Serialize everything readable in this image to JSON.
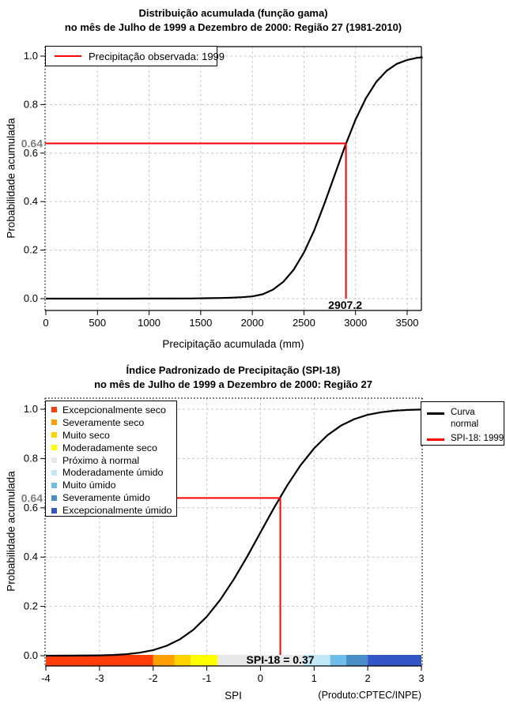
{
  "page": {
    "background": "#ffffff"
  },
  "colors": {
    "curve": "#000000",
    "highlight": "#ff0000",
    "grid": "#c8c8c8",
    "value_label_gray": "#7f7f7f"
  },
  "chart_data": [
    {
      "type": "line",
      "title_line1": "Distribuição acumulada (função gama)",
      "title_line2": "no mês de Julho de 1999 a Dezembro de 2000: Região 27 (1981-2010)",
      "xlabel": "Precipitação acumulada (mm)",
      "ylabel": "Probabilidade acumulada",
      "xlim": [
        0,
        3650
      ],
      "ylim": [
        0,
        1
      ],
      "grid": true,
      "x_ticks": [
        0,
        500,
        1000,
        1500,
        2000,
        2500,
        3000,
        3500
      ],
      "x_tick_labels": [
        "0",
        "500",
        "1000",
        "1500",
        "2000",
        "2500",
        "3000",
        "3500"
      ],
      "y_ticks": [
        0,
        0.2,
        0.4,
        0.6,
        0.8,
        1.0
      ],
      "y_tick_labels": [
        "0.0",
        "0.2",
        "0.4",
        "0.6",
        "0.8",
        "1.0"
      ],
      "series": [
        {
          "name": "Distribuição gama acumulada",
          "color": "#000000",
          "x": [
            0,
            200,
            400,
            600,
            800,
            1000,
            1200,
            1400,
            1600,
            1700,
            1800,
            1900,
            2000,
            2100,
            2200,
            2300,
            2400,
            2500,
            2600,
            2700,
            2800,
            2900,
            3000,
            3100,
            3200,
            3300,
            3400,
            3500,
            3600,
            3650
          ],
          "y": [
            0,
            0,
            0,
            0,
            0.0001,
            0.0002,
            0.0004,
            0.0008,
            0.0018,
            0.0027,
            0.004,
            0.006,
            0.009,
            0.018,
            0.037,
            0.069,
            0.119,
            0.19,
            0.282,
            0.393,
            0.512,
            0.631,
            0.738,
            0.826,
            0.893,
            0.939,
            0.968,
            0.984,
            0.993,
            0.995
          ]
        }
      ],
      "legend": [
        {
          "label": "Precipitação observada: 1999",
          "color": "#ff0000"
        }
      ],
      "annotation": {
        "x": 2907.2,
        "y": 0.64,
        "x_label": "2907.2",
        "y_label": "0.64"
      }
    },
    {
      "type": "line",
      "title_line1": "Índice Padronizado de Precipitação (SPI-18)",
      "title_line2": "no mês de Julho de 1999 a Dezembro de 2000: Região 27",
      "xlabel": "SPI",
      "ylabel": "Probabilidade acumulada",
      "xlim": [
        -4,
        3
      ],
      "ylim": [
        0,
        1
      ],
      "grid": true,
      "x_ticks": [
        -4,
        -3,
        -2,
        -1,
        0,
        1,
        2,
        3
      ],
      "x_tick_labels": [
        "-4",
        "-3",
        "-2",
        "-1",
        "0",
        "1",
        "2",
        "3"
      ],
      "y_ticks": [
        0,
        0.2,
        0.4,
        0.6,
        0.8,
        1.0
      ],
      "y_tick_labels": [
        "0.0",
        "0.2",
        "0.4",
        "0.6",
        "0.8",
        "1.0"
      ],
      "series": [
        {
          "name": "Curva normal",
          "color": "#000000",
          "x": [
            -4,
            -3.5,
            -3,
            -2.75,
            -2.5,
            -2.25,
            -2,
            -1.75,
            -1.5,
            -1.25,
            -1,
            -0.75,
            -0.5,
            -0.25,
            0,
            0.25,
            0.5,
            0.75,
            1,
            1.25,
            1.5,
            1.75,
            2,
            2.25,
            2.5,
            2.75,
            3
          ],
          "y": [
            0.0,
            0.0002,
            0.0013,
            0.003,
            0.0062,
            0.0122,
            0.0228,
            0.0401,
            0.0668,
            0.1056,
            0.1587,
            0.2266,
            0.3085,
            0.4013,
            0.5,
            0.5987,
            0.6915,
            0.7734,
            0.8413,
            0.8944,
            0.9332,
            0.9599,
            0.9772,
            0.9878,
            0.9938,
            0.997,
            0.9987
          ]
        }
      ],
      "legend": [
        {
          "lines": [
            "Curva",
            "normal"
          ],
          "color": "#000000"
        },
        {
          "lines": [
            "SPI-18: 1999"
          ],
          "color": "#ff0000"
        }
      ],
      "categories_legend": [
        {
          "label": "Excepcionalmente seco",
          "color": "#ff3c0a",
          "range": [
            -4,
            -2
          ]
        },
        {
          "label": "Severamente seco",
          "color": "#ffa000",
          "range": [
            -2,
            -1.6
          ]
        },
        {
          "label": "Muito seco",
          "color": "#ffd200",
          "range": [
            -1.6,
            -1.3
          ]
        },
        {
          "label": "Moderadamente seco",
          "color": "#ffff00",
          "range": [
            -1.3,
            -0.8
          ]
        },
        {
          "label": "Próximo à normal",
          "color": "#e8e8e8",
          "range": [
            -0.8,
            0.8
          ]
        },
        {
          "label": "Moderadamente úmido",
          "color": "#c2e8f8",
          "range": [
            0.8,
            1.3
          ]
        },
        {
          "label": "Muito úmido",
          "color": "#6ebee8",
          "range": [
            1.3,
            1.6
          ]
        },
        {
          "label": "Severamente úmido",
          "color": "#4a8ec8",
          "range": [
            1.6,
            2
          ]
        },
        {
          "label": "Excepcionalmente úmido",
          "color": "#3355c8",
          "range": [
            2,
            3
          ]
        }
      ],
      "annotation": {
        "x": 0.37,
        "y": 0.64,
        "y_label": "0.64",
        "bar_label": "SPI-18 = 0.37"
      },
      "footer_note": "(Produto:CPTEC/INPE)"
    }
  ]
}
